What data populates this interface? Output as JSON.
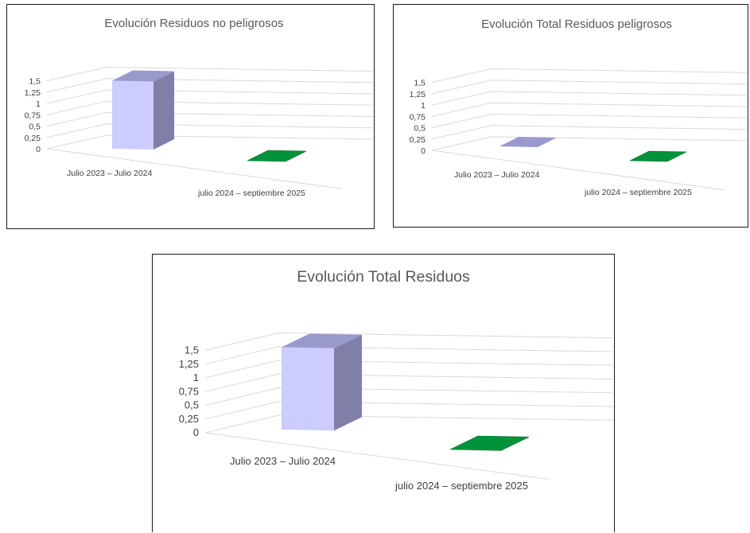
{
  "colors": {
    "bar_front": "#ccccff",
    "bar_side": "#7f7fa8",
    "bar_top": "#9999cc",
    "green_top": "#00933b",
    "green_edge": "#006a2a",
    "grid": "#d9d9d9",
    "text": "#404040",
    "title": "#595959"
  },
  "chart_data": [
    {
      "type": "bar",
      "projection": "3d",
      "title": "Evolución Residuos no peligrosos",
      "categories": [
        "Julio 2023 – Julio 2024",
        "julio 2024 – septiembre 2025"
      ],
      "values": [
        1.5,
        0
      ],
      "y_ticks": [
        "0",
        "0,25",
        "0,5",
        "0,75",
        "1",
        "1,25",
        "1,5"
      ],
      "ylim": [
        0,
        1.5
      ],
      "grid": true,
      "legend": "none",
      "series_colors": [
        "#ccccff",
        "#00933b"
      ]
    },
    {
      "type": "bar",
      "projection": "3d",
      "title": "Evolución Total Residuos peligrosos",
      "categories": [
        "Julio 2023 – Julio 2024",
        "julio 2024 – septiembre 2025"
      ],
      "values": [
        0,
        0
      ],
      "y_ticks": [
        "0",
        "0,25",
        "0,5",
        "0,75",
        "1",
        "1,25",
        "1,5"
      ],
      "ylim": [
        0,
        1.5
      ],
      "grid": true,
      "legend": "none",
      "series_colors": [
        "#ccccff",
        "#00933b"
      ]
    },
    {
      "type": "bar",
      "projection": "3d",
      "title": "Evolución Total Residuos",
      "categories": [
        "Julio 2023 – Julio 2024",
        "julio 2024 – septiembre 2025"
      ],
      "values": [
        1.5,
        0
      ],
      "y_ticks": [
        "0",
        "0,25",
        "0,5",
        "0,75",
        "1",
        "1,25",
        "1,5"
      ],
      "ylim": [
        0,
        1.5
      ],
      "grid": true,
      "legend": "none",
      "series_colors": [
        "#ccccff",
        "#00933b"
      ]
    }
  ]
}
